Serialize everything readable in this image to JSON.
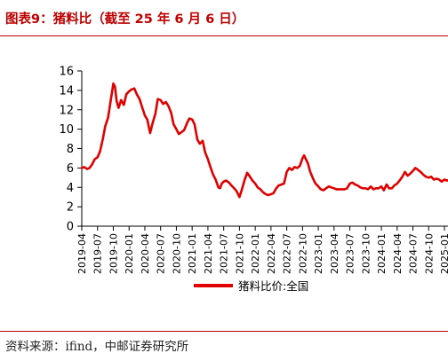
{
  "header": {
    "title": "图表9：猪料比（截至 25 年 6 月 6 日）"
  },
  "footer": {
    "source": "资料来源：ifind，中邮证券研究所"
  },
  "colors": {
    "accent": "#c00000",
    "series": "#e00000",
    "axis": "#000000"
  },
  "chart_data": {
    "type": "line",
    "title": "图表9：猪料比（截至 25 年 6 月 6 日）",
    "xlabel": "",
    "ylabel": "",
    "ylim": [
      0,
      16
    ],
    "yticks": [
      0,
      2,
      4,
      6,
      8,
      10,
      12,
      14,
      16
    ],
    "xlim": [
      "2019-04",
      "2025-01"
    ],
    "xticks": [
      "2019-04",
      "2019-07",
      "2019-10",
      "2020-01",
      "2020-04",
      "2020-07",
      "2020-10",
      "2021-01",
      "2021-04",
      "2021-07",
      "2021-10",
      "2022-01",
      "2022-04",
      "2022-07",
      "2022-10",
      "2023-01",
      "2023-04",
      "2023-07",
      "2023-10",
      "2024-01",
      "2024-04",
      "2024-07",
      "2024-10",
      "2025-01"
    ],
    "grid": false,
    "legend": "bottom",
    "series": [
      {
        "name": "猪料比价:全国",
        "color": "#e00000",
        "points": [
          [
            "2019-04-01",
            6.0
          ],
          [
            "2019-04-15",
            6.1
          ],
          [
            "2019-05-01",
            5.9
          ],
          [
            "2019-05-15",
            6.0
          ],
          [
            "2019-06-01",
            6.4
          ],
          [
            "2019-06-15",
            6.9
          ],
          [
            "2019-07-01",
            7.1
          ],
          [
            "2019-07-15",
            7.7
          ],
          [
            "2019-08-01",
            9.0
          ],
          [
            "2019-08-15",
            10.3
          ],
          [
            "2019-09-01",
            11.2
          ],
          [
            "2019-09-15",
            12.8
          ],
          [
            "2019-10-01",
            14.7
          ],
          [
            "2019-10-10",
            14.4
          ],
          [
            "2019-10-20",
            12.9
          ],
          [
            "2019-11-01",
            12.2
          ],
          [
            "2019-11-15",
            13.0
          ],
          [
            "2019-12-01",
            12.5
          ],
          [
            "2019-12-15",
            13.6
          ],
          [
            "2020-01-01",
            13.9
          ],
          [
            "2020-01-15",
            14.1
          ],
          [
            "2020-02-01",
            14.2
          ],
          [
            "2020-02-15",
            13.6
          ],
          [
            "2020-03-01",
            13.1
          ],
          [
            "2020-03-15",
            12.3
          ],
          [
            "2020-04-01",
            11.4
          ],
          [
            "2020-04-15",
            11.0
          ],
          [
            "2020-05-01",
            9.6
          ],
          [
            "2020-05-15",
            10.6
          ],
          [
            "2020-06-01",
            11.6
          ],
          [
            "2020-06-15",
            13.1
          ],
          [
            "2020-07-01",
            13.0
          ],
          [
            "2020-07-15",
            12.6
          ],
          [
            "2020-08-01",
            12.8
          ],
          [
            "2020-08-15",
            12.4
          ],
          [
            "2020-09-01",
            11.7
          ],
          [
            "2020-09-15",
            10.5
          ],
          [
            "2020-10-01",
            10.0
          ],
          [
            "2020-10-15",
            9.5
          ],
          [
            "2020-11-01",
            9.7
          ],
          [
            "2020-11-15",
            9.9
          ],
          [
            "2020-12-01",
            10.6
          ],
          [
            "2020-12-15",
            11.1
          ],
          [
            "2021-01-01",
            11.0
          ],
          [
            "2021-01-15",
            10.5
          ],
          [
            "2021-02-01",
            8.9
          ],
          [
            "2021-02-15",
            8.5
          ],
          [
            "2021-03-01",
            8.8
          ],
          [
            "2021-03-15",
            7.6
          ],
          [
            "2021-04-01",
            6.9
          ],
          [
            "2021-04-15",
            6.1
          ],
          [
            "2021-05-01",
            5.3
          ],
          [
            "2021-05-15",
            4.8
          ],
          [
            "2021-06-01",
            4.0
          ],
          [
            "2021-06-10",
            3.9
          ],
          [
            "2021-06-20",
            4.4
          ],
          [
            "2021-07-01",
            4.6
          ],
          [
            "2021-07-15",
            4.7
          ],
          [
            "2021-08-01",
            4.5
          ],
          [
            "2021-08-15",
            4.2
          ],
          [
            "2021-09-01",
            3.9
          ],
          [
            "2021-09-15",
            3.6
          ],
          [
            "2021-10-01",
            3.0
          ],
          [
            "2021-10-15",
            3.8
          ],
          [
            "2021-11-01",
            4.8
          ],
          [
            "2021-11-15",
            5.5
          ],
          [
            "2021-12-01",
            5.1
          ],
          [
            "2021-12-15",
            4.7
          ],
          [
            "2022-01-01",
            4.4
          ],
          [
            "2022-01-15",
            4.0
          ],
          [
            "2022-02-01",
            3.8
          ],
          [
            "2022-02-15",
            3.5
          ],
          [
            "2022-03-01",
            3.3
          ],
          [
            "2022-03-15",
            3.2
          ],
          [
            "2022-04-01",
            3.3
          ],
          [
            "2022-04-15",
            3.4
          ],
          [
            "2022-05-01",
            3.9
          ],
          [
            "2022-05-15",
            4.2
          ],
          [
            "2022-06-01",
            4.3
          ],
          [
            "2022-06-15",
            4.4
          ],
          [
            "2022-07-01",
            5.6
          ],
          [
            "2022-07-15",
            6.0
          ],
          [
            "2022-08-01",
            5.8
          ],
          [
            "2022-08-15",
            6.1
          ],
          [
            "2022-09-01",
            6.0
          ],
          [
            "2022-09-15",
            6.2
          ],
          [
            "2022-10-01",
            7.0
          ],
          [
            "2022-10-10",
            7.3
          ],
          [
            "2022-10-20",
            6.9
          ],
          [
            "2022-11-01",
            6.5
          ],
          [
            "2022-11-15",
            5.6
          ],
          [
            "2022-12-01",
            4.9
          ],
          [
            "2022-12-15",
            4.4
          ],
          [
            "2023-01-01",
            4.1
          ],
          [
            "2023-01-15",
            3.8
          ],
          [
            "2023-02-01",
            3.7
          ],
          [
            "2023-02-15",
            3.9
          ],
          [
            "2023-03-01",
            4.1
          ],
          [
            "2023-03-15",
            4.0
          ],
          [
            "2023-04-01",
            3.9
          ],
          [
            "2023-04-15",
            3.8
          ],
          [
            "2023-05-01",
            3.8
          ],
          [
            "2023-05-15",
            3.8
          ],
          [
            "2023-06-01",
            3.8
          ],
          [
            "2023-06-15",
            3.9
          ],
          [
            "2023-07-01",
            4.4
          ],
          [
            "2023-07-15",
            4.5
          ],
          [
            "2023-08-01",
            4.3
          ],
          [
            "2023-08-15",
            4.2
          ],
          [
            "2023-09-01",
            4.0
          ],
          [
            "2023-09-15",
            3.9
          ],
          [
            "2023-10-01",
            3.9
          ],
          [
            "2023-10-15",
            3.8
          ],
          [
            "2023-11-01",
            4.1
          ],
          [
            "2023-11-15",
            3.8
          ],
          [
            "2023-12-01",
            3.9
          ],
          [
            "2023-12-15",
            3.9
          ],
          [
            "2024-01-01",
            4.1
          ],
          [
            "2024-01-15",
            3.7
          ],
          [
            "2024-02-01",
            4.3
          ],
          [
            "2024-02-15",
            3.9
          ],
          [
            "2024-03-01",
            3.9
          ],
          [
            "2024-03-15",
            4.2
          ],
          [
            "2024-04-01",
            4.4
          ],
          [
            "2024-04-15",
            4.7
          ],
          [
            "2024-05-01",
            5.1
          ],
          [
            "2024-05-15",
            5.6
          ],
          [
            "2024-06-01",
            5.2
          ],
          [
            "2024-06-15",
            5.4
          ],
          [
            "2024-07-01",
            5.7
          ],
          [
            "2024-07-15",
            6.0
          ],
          [
            "2024-08-01",
            5.8
          ],
          [
            "2024-08-15",
            5.6
          ],
          [
            "2024-09-01",
            5.3
          ],
          [
            "2024-09-15",
            5.1
          ],
          [
            "2024-10-01",
            5.0
          ],
          [
            "2024-10-15",
            5.1
          ],
          [
            "2024-11-01",
            4.8
          ],
          [
            "2024-11-15",
            4.9
          ],
          [
            "2024-12-01",
            4.8
          ],
          [
            "2024-12-15",
            4.6
          ],
          [
            "2025-01-01",
            4.8
          ],
          [
            "2025-01-15",
            4.7
          ],
          [
            "2025-02-01",
            4.8
          ]
        ]
      }
    ]
  }
}
